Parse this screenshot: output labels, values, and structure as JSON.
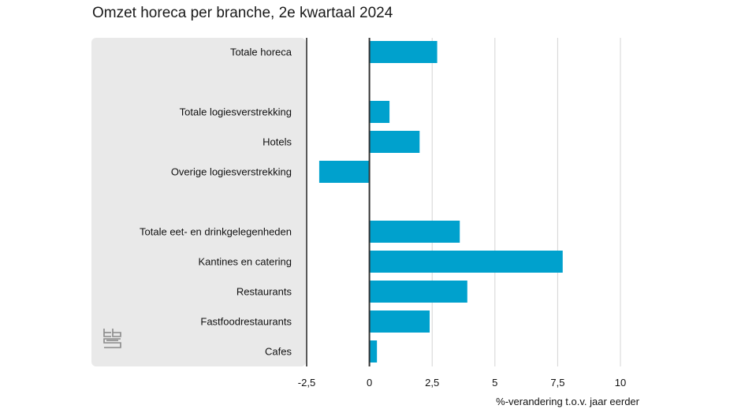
{
  "chart_data": {
    "type": "bar",
    "orientation": "horizontal",
    "title": "Omzet horeca per branche, 2e kwartaal 2024",
    "xlabel": "%-verandering t.o.v. jaar eerder",
    "ylabel": "",
    "xlim": [
      -2.5,
      10
    ],
    "xticks": [
      -2.5,
      0,
      2.5,
      5,
      7.5,
      10
    ],
    "xtick_labels": [
      "-2,5",
      "0",
      "2,5",
      "5",
      "7,5",
      "10"
    ],
    "grid": true,
    "bar_color": "#00a1cd",
    "categories": [
      "Totale horeca",
      "",
      "Totale logiesverstrekking",
      "Hotels",
      "Overige logiesverstrekking",
      "",
      "Totale eet- en drinkgelegenheden",
      "Kantines en catering",
      "Restaurants",
      "Fastfoodrestaurants",
      "Cafes"
    ],
    "values": [
      2.7,
      null,
      0.8,
      2.0,
      -2.0,
      null,
      3.6,
      7.7,
      3.9,
      2.4,
      0.3
    ]
  },
  "logo": {
    "name": "cbs-logo-icon",
    "color": "#8a8a8a"
  }
}
